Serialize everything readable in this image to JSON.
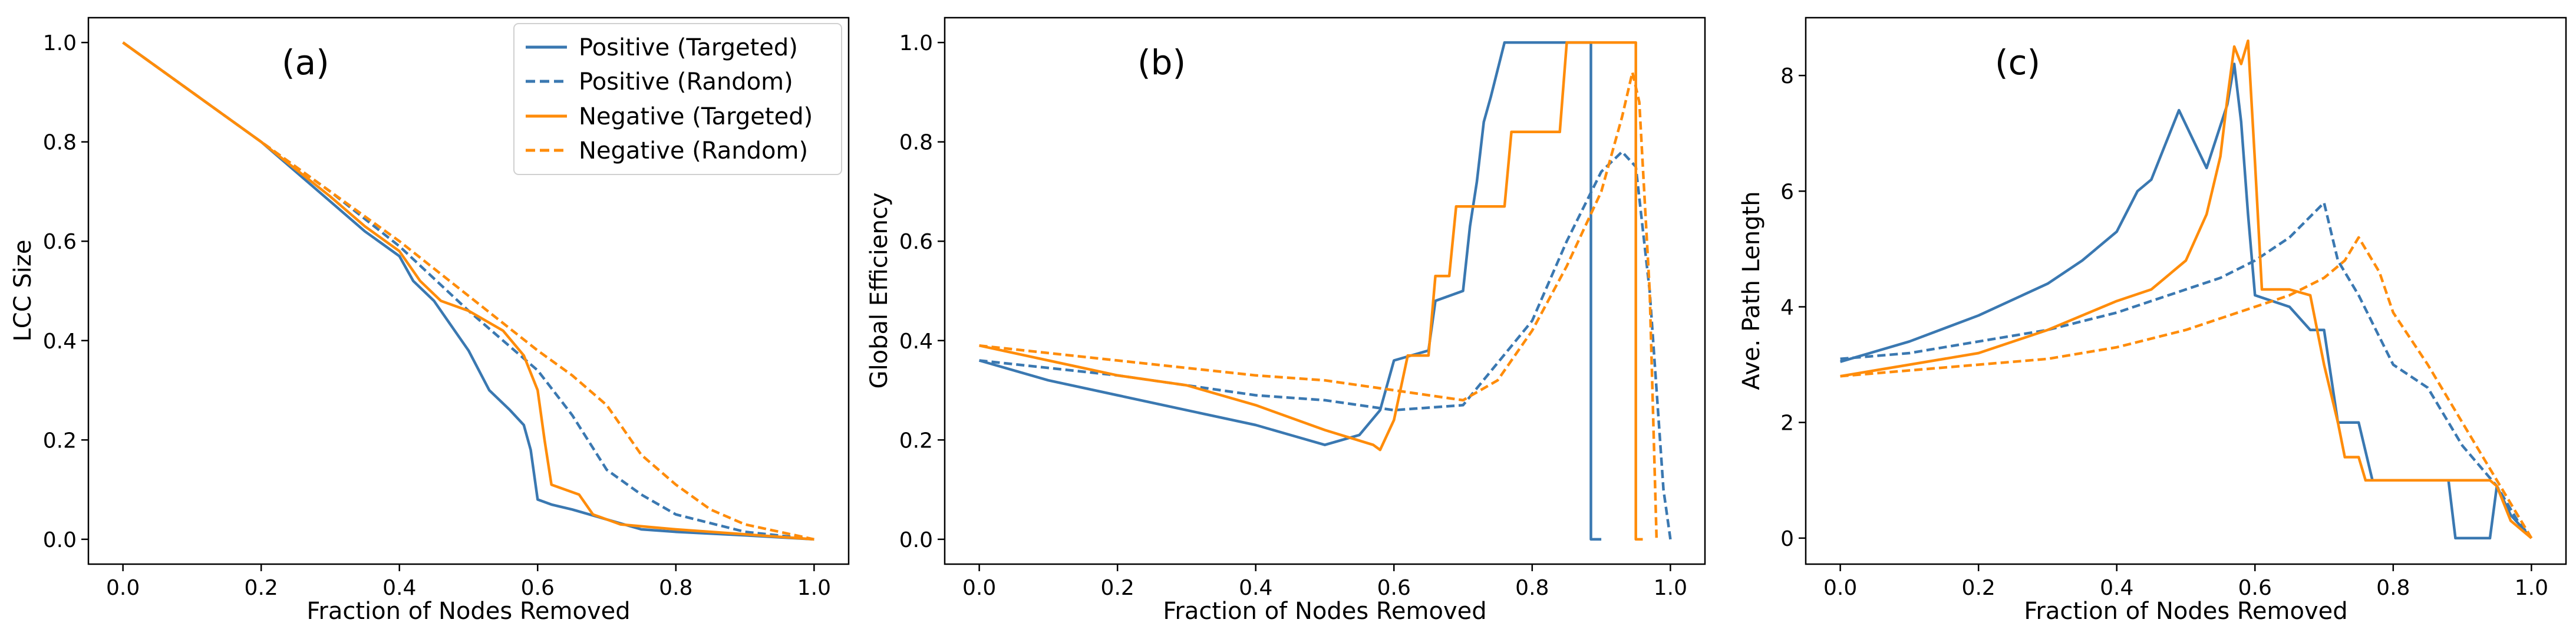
{
  "colors": {
    "positive": "#3a78b1",
    "negative": "#ff8c0a",
    "axis": "#000000",
    "legend_border": "#d0d0d0"
  },
  "chart_data": [
    {
      "type": "line",
      "panel_label": "(a)",
      "xlabel": "Fraction of Nodes Removed",
      "ylabel": "LCC Size",
      "xlim": [
        -0.05,
        1.05
      ],
      "ylim": [
        -0.05,
        1.05
      ],
      "xticks": [
        0.0,
        0.2,
        0.4,
        0.6,
        0.8,
        1.0
      ],
      "xtick_labels": [
        "0.0",
        "0.2",
        "0.4",
        "0.6",
        "0.8",
        "1.0"
      ],
      "yticks": [
        0.0,
        0.2,
        0.4,
        0.6,
        0.8,
        1.0
      ],
      "ytick_labels": [
        "0.0",
        "0.2",
        "0.4",
        "0.6",
        "0.8",
        "1.0"
      ],
      "legend": {
        "position": "top-right",
        "entries": [
          "Positive (Targeted)",
          "Positive (Random)",
          "Negative (Targeted)",
          "Negative (Random)"
        ]
      },
      "series": [
        {
          "name": "Positive (Targeted)",
          "color": "positive",
          "dashed": false,
          "points": [
            [
              0,
              1.0
            ],
            [
              0.1,
              0.9
            ],
            [
              0.2,
              0.8
            ],
            [
              0.25,
              0.74
            ],
            [
              0.3,
              0.68
            ],
            [
              0.35,
              0.62
            ],
            [
              0.4,
              0.57
            ],
            [
              0.42,
              0.52
            ],
            [
              0.45,
              0.48
            ],
            [
              0.48,
              0.42
            ],
            [
              0.5,
              0.38
            ],
            [
              0.53,
              0.3
            ],
            [
              0.56,
              0.26
            ],
            [
              0.58,
              0.23
            ],
            [
              0.59,
              0.18
            ],
            [
              0.6,
              0.08
            ],
            [
              0.62,
              0.07
            ],
            [
              0.65,
              0.06
            ],
            [
              0.7,
              0.04
            ],
            [
              0.75,
              0.02
            ],
            [
              0.8,
              0.015
            ],
            [
              0.9,
              0.008
            ],
            [
              1.0,
              0.0
            ]
          ]
        },
        {
          "name": "Positive (Random)",
          "color": "positive",
          "dashed": true,
          "points": [
            [
              0,
              1.0
            ],
            [
              0.2,
              0.8
            ],
            [
              0.3,
              0.7
            ],
            [
              0.4,
              0.59
            ],
            [
              0.5,
              0.46
            ],
            [
              0.55,
              0.4
            ],
            [
              0.6,
              0.34
            ],
            [
              0.65,
              0.25
            ],
            [
              0.7,
              0.14
            ],
            [
              0.75,
              0.09
            ],
            [
              0.8,
              0.05
            ],
            [
              0.9,
              0.015
            ],
            [
              1.0,
              0.0
            ]
          ]
        },
        {
          "name": "Negative (Targeted)",
          "color": "negative",
          "dashed": false,
          "points": [
            [
              0,
              1.0
            ],
            [
              0.2,
              0.8
            ],
            [
              0.3,
              0.69
            ],
            [
              0.35,
              0.63
            ],
            [
              0.4,
              0.58
            ],
            [
              0.43,
              0.52
            ],
            [
              0.46,
              0.48
            ],
            [
              0.5,
              0.46
            ],
            [
              0.55,
              0.42
            ],
            [
              0.58,
              0.37
            ],
            [
              0.6,
              0.3
            ],
            [
              0.61,
              0.2
            ],
            [
              0.62,
              0.11
            ],
            [
              0.66,
              0.09
            ],
            [
              0.68,
              0.05
            ],
            [
              0.72,
              0.03
            ],
            [
              0.8,
              0.02
            ],
            [
              0.9,
              0.01
            ],
            [
              1.0,
              0.0
            ]
          ]
        },
        {
          "name": "Negative (Random)",
          "color": "negative",
          "dashed": true,
          "points": [
            [
              0,
              1.0
            ],
            [
              0.2,
              0.8
            ],
            [
              0.3,
              0.7
            ],
            [
              0.4,
              0.6
            ],
            [
              0.5,
              0.49
            ],
            [
              0.6,
              0.38
            ],
            [
              0.65,
              0.33
            ],
            [
              0.7,
              0.27
            ],
            [
              0.75,
              0.17
            ],
            [
              0.8,
              0.11
            ],
            [
              0.85,
              0.06
            ],
            [
              0.9,
              0.03
            ],
            [
              1.0,
              0.0
            ]
          ]
        }
      ]
    },
    {
      "type": "line",
      "panel_label": "(b)",
      "xlabel": "Fraction of Nodes Removed",
      "ylabel": "Global Efficiency",
      "xlim": [
        -0.05,
        1.05
      ],
      "ylim": [
        -0.05,
        1.05
      ],
      "xticks": [
        0.0,
        0.2,
        0.4,
        0.6,
        0.8,
        1.0
      ],
      "xtick_labels": [
        "0.0",
        "0.2",
        "0.4",
        "0.6",
        "0.8",
        "1.0"
      ],
      "yticks": [
        0.0,
        0.2,
        0.4,
        0.6,
        0.8,
        1.0
      ],
      "ytick_labels": [
        "0.0",
        "0.2",
        "0.4",
        "0.6",
        "0.8",
        "1.0"
      ],
      "series": [
        {
          "name": "Positive (Targeted)",
          "color": "positive",
          "dashed": false,
          "points": [
            [
              0,
              0.36
            ],
            [
              0.1,
              0.32
            ],
            [
              0.2,
              0.29
            ],
            [
              0.3,
              0.26
            ],
            [
              0.4,
              0.23
            ],
            [
              0.45,
              0.21
            ],
            [
              0.5,
              0.19
            ],
            [
              0.55,
              0.21
            ],
            [
              0.58,
              0.26
            ],
            [
              0.6,
              0.36
            ],
            [
              0.65,
              0.38
            ],
            [
              0.66,
              0.48
            ],
            [
              0.7,
              0.5
            ],
            [
              0.71,
              0.63
            ],
            [
              0.72,
              0.72
            ],
            [
              0.73,
              0.84
            ],
            [
              0.74,
              0.89
            ],
            [
              0.76,
              1.0
            ],
            [
              0.885,
              1.0
            ],
            [
              0.885,
              0.0
            ],
            [
              0.9,
              0.0
            ]
          ]
        },
        {
          "name": "Positive (Random)",
          "color": "positive",
          "dashed": true,
          "points": [
            [
              0,
              0.36
            ],
            [
              0.2,
              0.33
            ],
            [
              0.4,
              0.29
            ],
            [
              0.5,
              0.28
            ],
            [
              0.6,
              0.26
            ],
            [
              0.7,
              0.27
            ],
            [
              0.8,
              0.44
            ],
            [
              0.85,
              0.6
            ],
            [
              0.9,
              0.74
            ],
            [
              0.93,
              0.78
            ],
            [
              0.95,
              0.75
            ],
            [
              0.97,
              0.5
            ],
            [
              0.98,
              0.3
            ],
            [
              0.99,
              0.1
            ],
            [
              1.0,
              0.0
            ]
          ]
        },
        {
          "name": "Negative (Targeted)",
          "color": "negative",
          "dashed": false,
          "points": [
            [
              0,
              0.39
            ],
            [
              0.1,
              0.36
            ],
            [
              0.2,
              0.33
            ],
            [
              0.3,
              0.31
            ],
            [
              0.4,
              0.27
            ],
            [
              0.5,
              0.22
            ],
            [
              0.57,
              0.19
            ],
            [
              0.58,
              0.18
            ],
            [
              0.6,
              0.24
            ],
            [
              0.62,
              0.37
            ],
            [
              0.65,
              0.37
            ],
            [
              0.66,
              0.53
            ],
            [
              0.68,
              0.53
            ],
            [
              0.69,
              0.67
            ],
            [
              0.76,
              0.67
            ],
            [
              0.77,
              0.82
            ],
            [
              0.84,
              0.82
            ],
            [
              0.85,
              1.0
            ],
            [
              0.95,
              1.0
            ],
            [
              0.95,
              0.0
            ],
            [
              0.96,
              0.0
            ]
          ]
        },
        {
          "name": "Negative (Random)",
          "color": "negative",
          "dashed": true,
          "points": [
            [
              0,
              0.39
            ],
            [
              0.2,
              0.36
            ],
            [
              0.4,
              0.33
            ],
            [
              0.5,
              0.32
            ],
            [
              0.6,
              0.3
            ],
            [
              0.7,
              0.28
            ],
            [
              0.75,
              0.32
            ],
            [
              0.8,
              0.42
            ],
            [
              0.85,
              0.55
            ],
            [
              0.9,
              0.7
            ],
            [
              0.93,
              0.85
            ],
            [
              0.945,
              0.94
            ],
            [
              0.955,
              0.88
            ],
            [
              0.97,
              0.5
            ],
            [
              0.98,
              0.0
            ]
          ]
        }
      ]
    },
    {
      "type": "line",
      "panel_label": "(c)",
      "xlabel": "Fraction of Nodes Removed",
      "ylabel": "Ave. Path Length",
      "xlim": [
        -0.05,
        1.05
      ],
      "ylim": [
        -0.45,
        9.0
      ],
      "xticks": [
        0.0,
        0.2,
        0.4,
        0.6,
        0.8,
        1.0
      ],
      "xtick_labels": [
        "0.0",
        "0.2",
        "0.4",
        "0.6",
        "0.8",
        "1.0"
      ],
      "yticks": [
        0,
        2,
        4,
        6,
        8
      ],
      "ytick_labels": [
        "0",
        "2",
        "4",
        "6",
        "8"
      ],
      "series": [
        {
          "name": "Positive (Targeted)",
          "color": "positive",
          "dashed": false,
          "points": [
            [
              0,
              3.05
            ],
            [
              0.1,
              3.4
            ],
            [
              0.2,
              3.85
            ],
            [
              0.3,
              4.4
            ],
            [
              0.35,
              4.8
            ],
            [
              0.4,
              5.3
            ],
            [
              0.43,
              6.0
            ],
            [
              0.45,
              6.2
            ],
            [
              0.47,
              6.8
            ],
            [
              0.49,
              7.4
            ],
            [
              0.51,
              6.9
            ],
            [
              0.53,
              6.4
            ],
            [
              0.56,
              7.5
            ],
            [
              0.57,
              8.2
            ],
            [
              0.58,
              7.2
            ],
            [
              0.59,
              5.6
            ],
            [
              0.6,
              4.2
            ],
            [
              0.65,
              4.0
            ],
            [
              0.68,
              3.6
            ],
            [
              0.7,
              3.6
            ],
            [
              0.72,
              2.0
            ],
            [
              0.75,
              2.0
            ],
            [
              0.77,
              1.0
            ],
            [
              0.88,
              1.0
            ],
            [
              0.89,
              0.0
            ],
            [
              0.94,
              0.0
            ],
            [
              0.95,
              0.9
            ],
            [
              0.97,
              0.4
            ],
            [
              1.0,
              0.0
            ]
          ]
        },
        {
          "name": "Positive (Random)",
          "color": "positive",
          "dashed": true,
          "points": [
            [
              0,
              3.1
            ],
            [
              0.1,
              3.2
            ],
            [
              0.2,
              3.4
            ],
            [
              0.3,
              3.6
            ],
            [
              0.4,
              3.9
            ],
            [
              0.5,
              4.3
            ],
            [
              0.55,
              4.5
            ],
            [
              0.6,
              4.8
            ],
            [
              0.65,
              5.2
            ],
            [
              0.7,
              5.8
            ],
            [
              0.72,
              4.8
            ],
            [
              0.75,
              4.2
            ],
            [
              0.8,
              3.0
            ],
            [
              0.85,
              2.6
            ],
            [
              0.9,
              1.6
            ],
            [
              0.95,
              0.9
            ],
            [
              0.98,
              0.3
            ],
            [
              1.0,
              0.0
            ]
          ]
        },
        {
          "name": "Negative (Targeted)",
          "color": "negative",
          "dashed": false,
          "points": [
            [
              0,
              2.8
            ],
            [
              0.1,
              3.0
            ],
            [
              0.2,
              3.2
            ],
            [
              0.3,
              3.6
            ],
            [
              0.4,
              4.1
            ],
            [
              0.45,
              4.3
            ],
            [
              0.5,
              4.8
            ],
            [
              0.53,
              5.6
            ],
            [
              0.55,
              6.6
            ],
            [
              0.56,
              7.6
            ],
            [
              0.57,
              8.5
            ],
            [
              0.58,
              8.2
            ],
            [
              0.59,
              8.6
            ],
            [
              0.6,
              6.5
            ],
            [
              0.61,
              4.3
            ],
            [
              0.65,
              4.3
            ],
            [
              0.68,
              4.2
            ],
            [
              0.7,
              3.0
            ],
            [
              0.72,
              2.0
            ],
            [
              0.73,
              1.4
            ],
            [
              0.75,
              1.4
            ],
            [
              0.76,
              1.0
            ],
            [
              0.94,
              1.0
            ],
            [
              0.95,
              0.9
            ],
            [
              0.97,
              0.3
            ],
            [
              1.0,
              0.0
            ]
          ]
        },
        {
          "name": "Negative (Random)",
          "color": "negative",
          "dashed": true,
          "points": [
            [
              0,
              2.8
            ],
            [
              0.1,
              2.9
            ],
            [
              0.2,
              3.0
            ],
            [
              0.3,
              3.1
            ],
            [
              0.4,
              3.3
            ],
            [
              0.5,
              3.6
            ],
            [
              0.6,
              4.0
            ],
            [
              0.65,
              4.2
            ],
            [
              0.7,
              4.5
            ],
            [
              0.73,
              4.8
            ],
            [
              0.75,
              5.2
            ],
            [
              0.78,
              4.6
            ],
            [
              0.8,
              3.9
            ],
            [
              0.85,
              3.0
            ],
            [
              0.9,
              2.0
            ],
            [
              0.95,
              1.0
            ],
            [
              0.98,
              0.4
            ],
            [
              1.0,
              0.0
            ]
          ]
        }
      ]
    }
  ]
}
